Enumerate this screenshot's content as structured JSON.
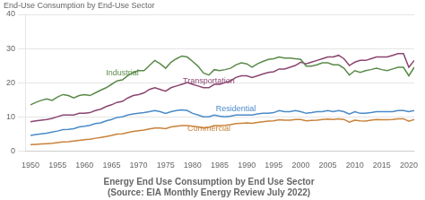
{
  "chart_data": {
    "type": "line",
    "title": "Energy End Use Consumption by End Use Sector",
    "subtitle": "(Source: EIA Monthly Energy Review July 2022)",
    "ylabel": "End-Use Consumption by End-Use Sector",
    "x": [
      1950,
      1951,
      1952,
      1953,
      1954,
      1955,
      1956,
      1957,
      1958,
      1959,
      1960,
      1961,
      1962,
      1963,
      1964,
      1965,
      1966,
      1967,
      1968,
      1969,
      1970,
      1971,
      1972,
      1973,
      1974,
      1975,
      1976,
      1977,
      1978,
      1979,
      1980,
      1981,
      1982,
      1983,
      1984,
      1985,
      1986,
      1987,
      1988,
      1989,
      1990,
      1991,
      1992,
      1993,
      1994,
      1995,
      1996,
      1997,
      1998,
      1999,
      2000,
      2001,
      2002,
      2003,
      2004,
      2005,
      2006,
      2007,
      2008,
      2009,
      2010,
      2011,
      2012,
      2013,
      2014,
      2015,
      2016,
      2017,
      2018,
      2019,
      2020,
      2021
    ],
    "series": [
      {
        "name": "Industrial",
        "color": "#5a8a4a",
        "values": [
          13.5,
          14.2,
          14.8,
          15.2,
          14.8,
          15.8,
          16.5,
          16.2,
          15.5,
          16.2,
          16.5,
          16.2,
          17.0,
          17.8,
          18.5,
          19.5,
          20.5,
          20.8,
          22.0,
          23.0,
          23.5,
          23.5,
          25.0,
          26.5,
          25.5,
          24.2,
          26.0,
          27.0,
          27.8,
          27.5,
          26.2,
          24.8,
          22.8,
          22.2,
          23.8,
          23.5,
          23.8,
          24.2,
          25.2,
          25.8,
          25.5,
          24.5,
          25.5,
          26.2,
          26.8,
          27.0,
          27.5,
          27.2,
          27.2,
          27.0,
          26.8,
          24.8,
          24.8,
          25.2,
          25.8,
          25.8,
          25.2,
          25.2,
          24.2,
          22.2,
          23.5,
          23.0,
          23.5,
          23.8,
          24.2,
          23.8,
          23.5,
          24.0,
          24.5,
          24.5,
          22.0,
          24.5
        ]
      },
      {
        "name": "Transportation",
        "color": "#8b4570",
        "values": [
          8.5,
          8.8,
          9.0,
          9.2,
          9.5,
          10.0,
          10.5,
          10.5,
          10.5,
          11.0,
          11.0,
          11.2,
          11.8,
          12.2,
          13.0,
          13.5,
          14.2,
          14.5,
          15.5,
          16.2,
          16.5,
          17.0,
          18.0,
          18.5,
          18.0,
          17.5,
          18.5,
          19.0,
          19.5,
          20.0,
          19.5,
          19.0,
          18.5,
          18.5,
          19.5,
          19.5,
          20.0,
          20.5,
          21.5,
          22.0,
          22.0,
          21.5,
          22.0,
          22.5,
          23.0,
          23.2,
          24.0,
          24.0,
          24.5,
          25.0,
          26.0,
          25.5,
          26.0,
          26.5,
          27.0,
          27.5,
          27.5,
          28.0,
          27.0,
          25.0,
          26.0,
          26.5,
          26.5,
          27.0,
          27.5,
          27.5,
          27.5,
          28.0,
          28.5,
          28.5,
          24.5,
          26.5
        ]
      },
      {
        "name": "Residential",
        "color": "#4a8ac8",
        "values": [
          4.5,
          4.8,
          5.0,
          5.2,
          5.5,
          5.8,
          6.2,
          6.3,
          6.5,
          7.0,
          7.2,
          7.5,
          8.0,
          8.2,
          8.8,
          9.2,
          9.8,
          10.0,
          10.5,
          10.8,
          11.0,
          11.2,
          11.5,
          11.8,
          11.5,
          11.0,
          11.5,
          11.8,
          12.0,
          11.8,
          11.0,
          10.5,
          10.0,
          10.0,
          10.5,
          10.2,
          10.0,
          10.2,
          10.5,
          10.5,
          10.5,
          10.5,
          10.8,
          11.0,
          11.0,
          11.2,
          11.8,
          11.5,
          11.5,
          11.8,
          11.5,
          11.0,
          11.2,
          11.5,
          11.5,
          11.8,
          11.5,
          11.8,
          11.5,
          10.8,
          11.5,
          11.0,
          11.0,
          11.2,
          11.5,
          11.5,
          11.5,
          11.5,
          11.8,
          11.8,
          11.5,
          11.8
        ]
      },
      {
        "name": "Commercial",
        "color": "#c8823a",
        "values": [
          1.8,
          1.9,
          2.0,
          2.1,
          2.2,
          2.4,
          2.6,
          2.7,
          2.9,
          3.1,
          3.3,
          3.4,
          3.7,
          3.9,
          4.2,
          4.5,
          4.9,
          5.0,
          5.4,
          5.7,
          5.9,
          6.1,
          6.4,
          6.7,
          6.7,
          6.5,
          7.0,
          7.2,
          7.4,
          7.4,
          7.2,
          7.0,
          6.7,
          6.9,
          7.4,
          7.4,
          7.5,
          7.7,
          8.0,
          8.1,
          8.2,
          8.1,
          8.3,
          8.5,
          8.7,
          8.8,
          9.1,
          9.0,
          9.0,
          9.2,
          9.2,
          8.8,
          8.9,
          9.0,
          9.2,
          9.3,
          9.2,
          9.4,
          9.2,
          8.4,
          9.0,
          8.8,
          8.7,
          9.0,
          9.2,
          9.1,
          9.1,
          9.2,
          9.4,
          9.4,
          8.7,
          9.2
        ]
      }
    ],
    "xlim": [
      1949,
      2021
    ],
    "xticks": [
      1950,
      1955,
      1960,
      1965,
      1970,
      1975,
      1980,
      1985,
      1990,
      1995,
      2000,
      2005,
      2010,
      2015,
      2020
    ],
    "ylim": [
      0,
      40
    ],
    "yticks": [
      0,
      10,
      20,
      30,
      40
    ],
    "grid": "y",
    "annotations": [
      {
        "text": "Industrial",
        "x": 1967,
        "y": 21.5,
        "color": "#5a8a4a"
      },
      {
        "text": "Transportation",
        "x": 1983,
        "y": 19.2,
        "color": "#8b4570"
      },
      {
        "text": "Residential",
        "x": 1988,
        "y": 11.2,
        "color": "#4a8ac8"
      },
      {
        "text": "Commercial",
        "x": 1983,
        "y": 5.2,
        "color": "#c8823a"
      }
    ]
  }
}
